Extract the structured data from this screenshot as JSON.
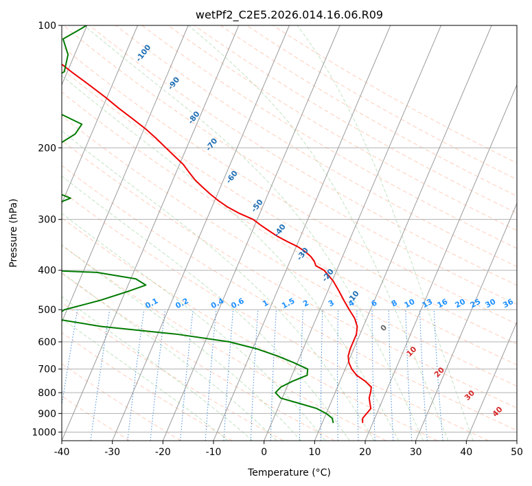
{
  "chart_data": {
    "type": "line",
    "title": "wetPf2_C2E5.2026.014.16.06.R09",
    "xlabel": "Temperature (°C)",
    "ylabel": "Pressure (hPa)",
    "xlim": [
      -40,
      50
    ],
    "ylim": [
      1050,
      100
    ],
    "y_scale": "log",
    "x_ticks": [
      "-40",
      "-30",
      "-20",
      "-10",
      "0",
      "10",
      "20",
      "30",
      "40",
      "50"
    ],
    "y_ticks": [
      {
        "p": 100,
        "label": "100"
      },
      {
        "p": 200,
        "label": "200"
      },
      {
        "p": 300,
        "label": "300"
      },
      {
        "p": 400,
        "label": "400"
      },
      {
        "p": 500,
        "label": "500"
      },
      {
        "p": 600,
        "label": "600"
      },
      {
        "p": 700,
        "label": "700"
      },
      {
        "p": 800,
        "label": "800"
      },
      {
        "p": 900,
        "label": "900"
      },
      {
        "p": 1000,
        "label": "1000"
      }
    ],
    "skew": 35,
    "isotherms": [
      -100,
      -90,
      -80,
      -70,
      -60,
      -50,
      -40,
      -30,
      -20,
      -10,
      0,
      10,
      20,
      30,
      40
    ],
    "isotherm_labels": [
      {
        "text": "-100",
        "t": -23.5,
        "p": 118
      },
      {
        "text": "-90",
        "t": -17.5,
        "p": 140
      },
      {
        "text": "-80",
        "t": -13.5,
        "p": 170
      },
      {
        "text": "-70",
        "t": -10,
        "p": 198
      },
      {
        "text": "-60",
        "t": -6,
        "p": 238
      },
      {
        "text": "-50",
        "t": -1,
        "p": 280
      },
      {
        "text": "-40",
        "t": 3.5,
        "p": 322
      },
      {
        "text": "-30",
        "t": 8,
        "p": 368
      },
      {
        "text": "-20",
        "t": 13,
        "p": 415
      },
      {
        "text": "-10",
        "t": 18,
        "p": 470
      }
    ],
    "dry_adiabats": [
      -30,
      -20,
      -10,
      0,
      10,
      20,
      30,
      40,
      50,
      60,
      70,
      80,
      90,
      100,
      110,
      120,
      130,
      140,
      150,
      160,
      170,
      180,
      190
    ],
    "moist_adiabats": [
      -10,
      -5,
      0,
      5,
      10,
      15,
      20,
      25,
      30,
      35,
      40
    ],
    "mixing_ratios": [
      {
        "label": "0.1",
        "t": -22,
        "w": 0.1
      },
      {
        "label": "0.2",
        "t": -16,
        "w": 0.2
      },
      {
        "label": "0.4",
        "t": -9,
        "w": 0.4
      },
      {
        "label": "0.6",
        "t": -5,
        "w": 0.6
      },
      {
        "label": "1",
        "t": 0.5,
        "w": 1
      },
      {
        "label": "1.5",
        "t": 5,
        "w": 1.5
      },
      {
        "label": "2",
        "t": 8.5,
        "w": 2
      },
      {
        "label": "3",
        "t": 13.5,
        "w": 3
      },
      {
        "label": "4",
        "t": 17.5,
        "w": 4
      },
      {
        "label": "6",
        "t": 22,
        "w": 6
      },
      {
        "label": "8",
        "t": 26,
        "w": 8
      },
      {
        "label": "10",
        "t": 29,
        "w": 10
      },
      {
        "label": "13",
        "t": 32.5,
        "w": 13
      },
      {
        "label": "16",
        "t": 35.5,
        "w": 16
      },
      {
        "label": "20",
        "t": 39,
        "w": 20
      },
      {
        "label": "25",
        "t": 42,
        "w": 25
      },
      {
        "label": "30",
        "t": 45,
        "w": 30
      },
      {
        "label": "36",
        "t": 48.5,
        "w": 36
      }
    ],
    "theta_e_labels": [
      {
        "text": "0",
        "t": 24,
        "p": 560,
        "color": "#666666"
      },
      {
        "text": "10",
        "t": 29.5,
        "p": 640,
        "color": "#d62728"
      },
      {
        "text": "20",
        "t": 35,
        "p": 720,
        "color": "#d62728"
      },
      {
        "text": "30",
        "t": 41,
        "p": 820,
        "color": "#d62728"
      },
      {
        "text": "40",
        "t": 46.5,
        "p": 900,
        "color": "#d62728"
      }
    ],
    "series": [
      {
        "key": "temperature",
        "color": "#ee0000",
        "points": [
          [
            18,
            950
          ],
          [
            17.6,
            925
          ],
          [
            18,
            900
          ],
          [
            18.4,
            875
          ],
          [
            17.8,
            850
          ],
          [
            17.2,
            825
          ],
          [
            17,
            800
          ],
          [
            16.7,
            775
          ],
          [
            15,
            750
          ],
          [
            12.8,
            725
          ],
          [
            11.3,
            700
          ],
          [
            10.2,
            675
          ],
          [
            9.5,
            650
          ],
          [
            9.3,
            625
          ],
          [
            9.3,
            600
          ],
          [
            9.3,
            575
          ],
          [
            8.8,
            550
          ],
          [
            7.6,
            525
          ],
          [
            5.8,
            500
          ],
          [
            4,
            475
          ],
          [
            2.2,
            450
          ],
          [
            0.2,
            425
          ],
          [
            -2.5,
            400
          ],
          [
            -4.5,
            390
          ],
          [
            -5.2,
            380
          ],
          [
            -6.3,
            370
          ],
          [
            -7.8,
            360
          ],
          [
            -9.7,
            350
          ],
          [
            -12.2,
            340
          ],
          [
            -14.6,
            330
          ],
          [
            -16.7,
            320
          ],
          [
            -18.8,
            310
          ],
          [
            -20.8,
            300
          ],
          [
            -24,
            290
          ],
          [
            -26.8,
            280
          ],
          [
            -29.2,
            270
          ],
          [
            -31.4,
            260
          ],
          [
            -33.5,
            250
          ],
          [
            -35.6,
            240
          ],
          [
            -37.4,
            230
          ],
          [
            -39.2,
            220
          ],
          [
            -41.6,
            210
          ],
          [
            -44.1,
            200
          ],
          [
            -46.7,
            190
          ],
          [
            -49.6,
            180
          ],
          [
            -53,
            170
          ],
          [
            -56.7,
            160
          ],
          [
            -60.4,
            150
          ],
          [
            -64.6,
            140
          ],
          [
            -69.2,
            130
          ],
          [
            -74,
            120
          ],
          [
            -78.6,
            110
          ],
          [
            -82.6,
            100
          ]
        ]
      },
      {
        "key": "dewpoint",
        "color": "#007a00",
        "points": [
          [
            12.2,
            950
          ],
          [
            11.6,
            925
          ],
          [
            10,
            900
          ],
          [
            7.7,
            875
          ],
          [
            3.8,
            850
          ],
          [
            -0.3,
            825
          ],
          [
            -1.8,
            800
          ],
          [
            -1.2,
            775
          ],
          [
            0.6,
            750
          ],
          [
            3,
            725
          ],
          [
            2.6,
            700
          ],
          [
            -0.7,
            675
          ],
          [
            -4.5,
            650
          ],
          [
            -9,
            625
          ],
          [
            -15.2,
            600
          ],
          [
            -26,
            575
          ],
          [
            -41.8,
            550
          ],
          [
            -52.3,
            525
          ],
          [
            -50.5,
            500
          ],
          [
            -44.4,
            475
          ],
          [
            -39.3,
            450
          ],
          [
            -36.5,
            435
          ],
          [
            -39,
            420
          ],
          [
            -47.2,
            405
          ],
          [
            -68.4,
            395
          ],
          [
            -90.6,
            385
          ],
          [
            -94.6,
            380
          ],
          [
            -80,
            372
          ],
          [
            -64.3,
            360
          ],
          [
            -60,
            348
          ],
          [
            -65.5,
            335
          ],
          [
            -78,
            320
          ],
          [
            -92.4,
            311
          ],
          [
            -94.2,
            303
          ],
          [
            -86.8,
            298
          ],
          [
            -73.7,
            290
          ],
          [
            -62,
            278
          ],
          [
            -58.7,
            266
          ],
          [
            -63,
            255
          ],
          [
            -71.8,
            245
          ],
          [
            -82,
            233
          ],
          [
            -88.7,
            224
          ],
          [
            -86.6,
            219
          ],
          [
            -74.5,
            210
          ],
          [
            -66.4,
            200
          ],
          [
            -63.2,
            185
          ],
          [
            -62.7,
            175
          ],
          [
            -67.3,
            166
          ],
          [
            -78,
            157
          ],
          [
            -85.5,
            151
          ],
          [
            -83.2,
            147
          ],
          [
            -74.2,
            140
          ],
          [
            -70.6,
            130
          ],
          [
            -71.3,
            118
          ],
          [
            -73.6,
            108
          ],
          [
            -71.4,
            103
          ],
          [
            -70.1,
            100
          ]
        ]
      }
    ],
    "grid": true
  }
}
